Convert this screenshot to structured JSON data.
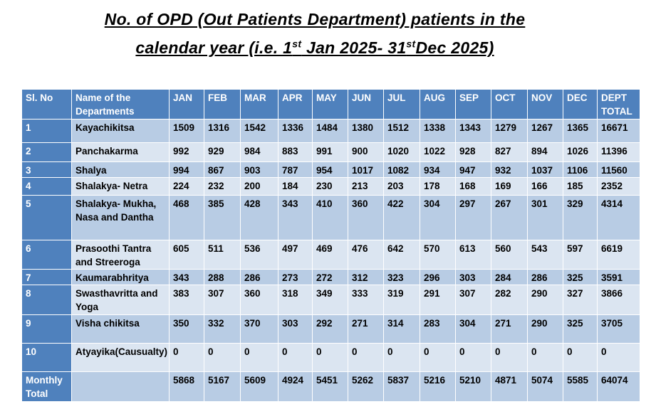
{
  "title": {
    "line1": "No. of OPD (Out Patients Department) patients in the",
    "line2_pre": "calendar year (i.e. 1",
    "line2_sup1": "st",
    "line2_mid": " Jan 2025- 31",
    "line2_sup2": "st",
    "line2_post": "Dec 2025)"
  },
  "table": {
    "headers": [
      "Sl. No",
      "Name of the Departments",
      "JAN",
      "FEB",
      "MAR",
      "APR",
      "MAY",
      "JUN",
      "JUL",
      "AUG",
      "SEP",
      "OCT",
      "NOV",
      "DEC",
      "DEPT TOTAL"
    ],
    "rows": [
      {
        "sl": "1",
        "name": "Kayachikitsa",
        "values": [
          "1509",
          "1316",
          "1542",
          "1336",
          "1484",
          "1380",
          "1512",
          "1338",
          "1343",
          "1279",
          "1267",
          "1365",
          "16671"
        ]
      },
      {
        "sl": "2",
        "name": "Panchakarma",
        "values": [
          "992",
          "929",
          "984",
          "883",
          "991",
          "900",
          "1020",
          "1022",
          "928",
          "827",
          "894",
          "1026",
          "11396"
        ]
      },
      {
        "sl": "3",
        "name": "Shalya",
        "values": [
          "994",
          "867",
          "903",
          "787",
          "954",
          "1017",
          "1082",
          "934",
          "947",
          "932",
          "1037",
          "1106",
          "11560"
        ]
      },
      {
        "sl": "4",
        "name": "Shalakya- Netra",
        "values": [
          "224",
          "232",
          "200",
          "184",
          "230",
          "213",
          "203",
          "178",
          "168",
          "169",
          "166",
          "185",
          "2352"
        ]
      },
      {
        "sl": "5",
        "name": "Shalakya- Mukha, Nasa and Dantha",
        "values": [
          "468",
          "385",
          "428",
          "343",
          "410",
          "360",
          "422",
          "304",
          "297",
          "267",
          "301",
          "329",
          "4314"
        ]
      },
      {
        "sl": "6",
        "name": "Prasoothi Tantra and Streeroga",
        "values": [
          "605",
          "511",
          "536",
          "497",
          "469",
          "476",
          "642",
          "570",
          "613",
          "560",
          "543",
          "597",
          "6619"
        ]
      },
      {
        "sl": "7",
        "name": "Kaumarabhritya",
        "values": [
          "343",
          "288",
          "286",
          "273",
          "272",
          "312",
          "323",
          "296",
          "303",
          "284",
          "286",
          "325",
          "3591"
        ]
      },
      {
        "sl": "8",
        "name": "Swasthavritta and Yoga",
        "values": [
          "383",
          "307",
          "360",
          "318",
          "349",
          "333",
          "319",
          "291",
          "307",
          "282",
          "290",
          "327",
          "3866"
        ]
      },
      {
        "sl": "9",
        "name": "Visha chikitsa",
        "values": [
          "350",
          "332",
          "370",
          "303",
          "292",
          "271",
          "314",
          "283",
          "304",
          "271",
          "290",
          "325",
          "3705"
        ]
      },
      {
        "sl": "10",
        "name": "Atyayika(Causualty)",
        "values": [
          "0",
          "0",
          "0",
          "0",
          "0",
          "0",
          "0",
          "0",
          "0",
          "0",
          "0",
          "0",
          "0"
        ]
      },
      {
        "sl": "Monthly Total",
        "name": "",
        "values": [
          "5868",
          "5167",
          "5609",
          "4924",
          "5451",
          "5262",
          "5837",
          "5216",
          "5210",
          "4871",
          "5074",
          "5585",
          "64074"
        ]
      }
    ]
  },
  "colors": {
    "header": "#4F81BD",
    "row_dark": "#B8CCE4",
    "row_light": "#DBE5F1"
  }
}
